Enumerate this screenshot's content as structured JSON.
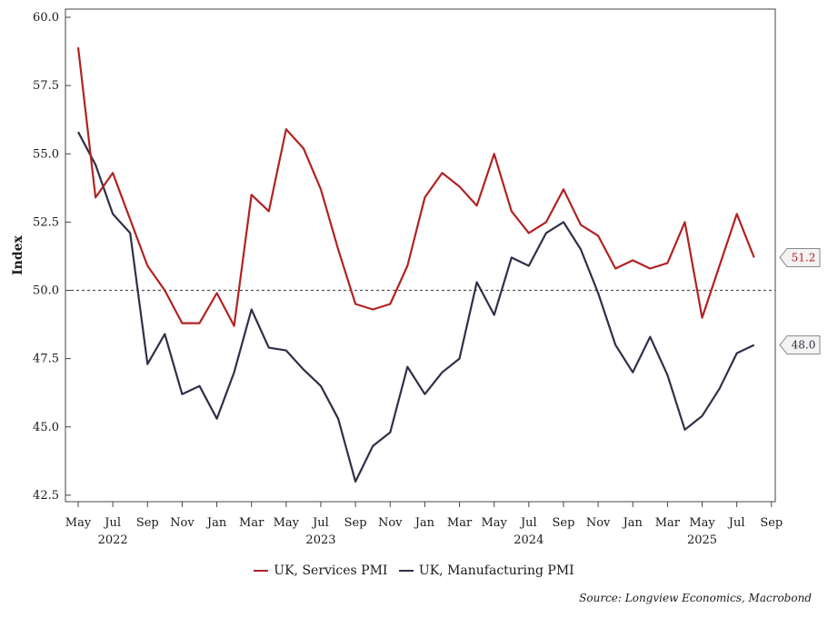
{
  "chart_data": {
    "type": "line",
    "ylabel": "Index",
    "ylim": [
      42.5,
      60.0
    ],
    "yticks": [
      42.5,
      45.0,
      47.5,
      50.0,
      52.5,
      55.0,
      57.5,
      60.0
    ],
    "ytick_labels": [
      "42.5",
      "45.0",
      "47.5",
      "50.0",
      "52.5",
      "55.0",
      "57.5",
      "60.0"
    ],
    "reference_line": 50.0,
    "x_month_index_range": [
      0,
      40
    ],
    "xticks": [
      {
        "i": 0,
        "label": "May"
      },
      {
        "i": 2,
        "label": "Jul"
      },
      {
        "i": 4,
        "label": "Sep"
      },
      {
        "i": 6,
        "label": "Nov"
      },
      {
        "i": 8,
        "label": "Jan"
      },
      {
        "i": 10,
        "label": "Mar"
      },
      {
        "i": 12,
        "label": "May"
      },
      {
        "i": 14,
        "label": "Jul"
      },
      {
        "i": 16,
        "label": "Sep"
      },
      {
        "i": 18,
        "label": "Nov"
      },
      {
        "i": 20,
        "label": "Jan"
      },
      {
        "i": 22,
        "label": "Mar"
      },
      {
        "i": 24,
        "label": "May"
      },
      {
        "i": 26,
        "label": "Jul"
      },
      {
        "i": 28,
        "label": "Sep"
      },
      {
        "i": 30,
        "label": "Nov"
      },
      {
        "i": 32,
        "label": "Jan"
      },
      {
        "i": 34,
        "label": "Mar"
      },
      {
        "i": 36,
        "label": "May"
      },
      {
        "i": 38,
        "label": "Jul"
      },
      {
        "i": 40,
        "label": "Sep"
      }
    ],
    "years": [
      {
        "i": 2,
        "label": "2022"
      },
      {
        "i": 14,
        "label": "2023"
      },
      {
        "i": 26,
        "label": "2024"
      },
      {
        "i": 36,
        "label": "2025"
      }
    ],
    "series": [
      {
        "name": "UK, Services PMI",
        "color": "#b22222",
        "end_label": "51.2",
        "values": [
          58.9,
          53.4,
          54.3,
          52.6,
          50.9,
          50.0,
          48.8,
          48.8,
          49.9,
          48.7,
          53.5,
          52.9,
          55.9,
          55.2,
          53.7,
          51.5,
          49.5,
          49.3,
          49.5,
          50.9,
          53.4,
          54.3,
          53.8,
          53.1,
          55.0,
          52.9,
          52.1,
          52.5,
          53.7,
          52.4,
          52.0,
          50.8,
          51.1,
          50.8,
          51.0,
          52.5,
          49.0,
          50.9,
          52.8,
          51.2
        ]
      },
      {
        "name": "UK, Manufacturing PMI",
        "color": "#2f3048",
        "end_label": "48.0",
        "values": [
          55.8,
          54.6,
          52.8,
          52.1,
          47.3,
          48.4,
          46.2,
          46.5,
          45.3,
          47.0,
          49.3,
          47.9,
          47.8,
          47.1,
          46.5,
          45.3,
          43.0,
          44.3,
          44.8,
          47.2,
          46.2,
          47.0,
          47.5,
          50.3,
          49.1,
          51.2,
          50.9,
          52.1,
          52.5,
          51.5,
          49.9,
          48.0,
          47.0,
          48.3,
          46.9,
          44.9,
          45.4,
          46.4,
          47.7,
          48.0
        ]
      }
    ]
  },
  "legend": {
    "services": "UK, Services PMI",
    "manufacturing": "UK, Manufacturing PMI"
  },
  "source": "Source: Longview Economics, Macrobond"
}
